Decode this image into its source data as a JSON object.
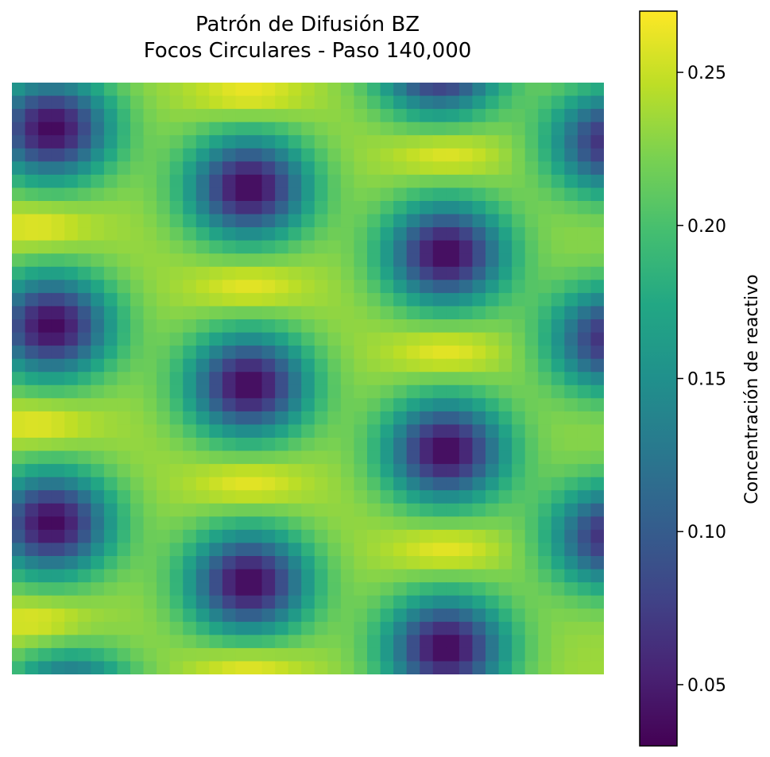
{
  "chart_data": {
    "type": "heatmap",
    "title_line1": "Patrón de Difusión BZ",
    "title_line2": "Focos Circulares - Paso 140,000",
    "colormap": "viridis",
    "grid_rows": 45,
    "grid_cols": 45,
    "axes_visible": false,
    "value_range": [
      0.03,
      0.27
    ],
    "colorbar": {
      "label": "Concentración de reactivo",
      "ticks": [
        0.05,
        0.1,
        0.15,
        0.2,
        0.25
      ],
      "tick_labels": [
        "0.05",
        "0.10",
        "0.15",
        "0.20",
        "0.25"
      ],
      "min": 0.03,
      "max": 0.27,
      "position": "right"
    },
    "background_value": 0.235,
    "low_spots": [
      {
        "col": 2.5,
        "row": 3,
        "min": 0.035
      },
      {
        "col": 17.5,
        "row": 7.5,
        "min": 0.035
      },
      {
        "col": 32.5,
        "row": 12.5,
        "min": 0.035
      },
      {
        "col": 2.5,
        "row": 18,
        "min": 0.035
      },
      {
        "col": 17.5,
        "row": 22.5,
        "min": 0.035
      },
      {
        "col": 32.5,
        "row": 27.5,
        "min": 0.035
      },
      {
        "col": 2.5,
        "row": 33,
        "min": 0.035
      },
      {
        "col": 17.5,
        "row": 37.5,
        "min": 0.035
      },
      {
        "col": 32.5,
        "row": 42.5,
        "min": 0.035
      },
      {
        "col": 32,
        "row": -2,
        "min": 0.035
      },
      {
        "col": 45,
        "row": 4,
        "min": 0.06
      },
      {
        "col": 45,
        "row": 19,
        "min": 0.06
      },
      {
        "col": 45,
        "row": 34,
        "min": 0.06
      },
      {
        "col": 4,
        "row": 47,
        "min": 0.06
      }
    ],
    "high_spots": [
      {
        "col": 1.5,
        "row": 10.5,
        "max": 0.27
      },
      {
        "col": 17.5,
        "row": 15,
        "max": 0.27
      },
      {
        "col": 32.5,
        "row": 5,
        "max": 0.27
      },
      {
        "col": 1.5,
        "row": 25.5,
        "max": 0.27
      },
      {
        "col": 17.5,
        "row": 30,
        "max": 0.27
      },
      {
        "col": 32.5,
        "row": 20,
        "max": 0.27
      },
      {
        "col": 1.5,
        "row": 40.5,
        "max": 0.27
      },
      {
        "col": 17.5,
        "row": 44,
        "max": 0.27
      },
      {
        "col": 32.5,
        "row": 35,
        "max": 0.27
      },
      {
        "col": 17.5,
        "row": 0.5,
        "max": 0.27
      }
    ]
  }
}
